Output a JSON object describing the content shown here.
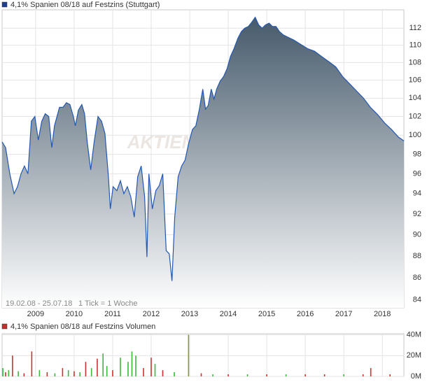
{
  "chart_data": [
    {
      "type": "area",
      "title": "4,1% Spanien 08/18 auf Festzins (Stuttgart)",
      "legend_color": "#1f3f8f",
      "color": "#2458b0",
      "fill_top": "#465a6b",
      "fill_bottom": "#ffffff",
      "watermark": "AKTIEN",
      "range_label": "19.02.08 - 25.07.18",
      "tick_label": "1 Tick = 1 Woche",
      "log_scale": true,
      "grid": true,
      "xlim": [
        2008.13,
        2018.56
      ],
      "xticks": [
        2009,
        2010,
        2011,
        2012,
        2013,
        2014,
        2015,
        2016,
        2017,
        2018
      ],
      "ylim": [
        83.3,
        114.2
      ],
      "yticks": [
        84,
        86,
        88,
        90,
        92,
        94,
        96,
        98,
        100,
        102,
        104,
        106,
        108,
        110,
        112
      ],
      "x": [
        2008.13,
        2008.22,
        2008.33,
        2008.44,
        2008.53,
        2008.62,
        2008.71,
        2008.8,
        2008.89,
        2008.98,
        2009.07,
        2009.16,
        2009.25,
        2009.34,
        2009.42,
        2009.49,
        2009.62,
        2009.71,
        2009.8,
        2009.89,
        2009.98,
        2010.03,
        2010.11,
        2010.2,
        2010.27,
        2010.34,
        2010.43,
        2010.52,
        2010.62,
        2010.71,
        2010.8,
        2010.89,
        2010.94,
        2011.01,
        2011.11,
        2011.2,
        2011.29,
        2011.38,
        2011.47,
        2011.56,
        2011.65,
        2011.74,
        2011.83,
        2011.89,
        2011.94,
        2012.03,
        2012.12,
        2012.21,
        2012.3,
        2012.39,
        2012.47,
        2012.54,
        2012.61,
        2012.7,
        2012.79,
        2012.88,
        2012.97,
        2013.07,
        2013.16,
        2013.25,
        2013.34,
        2013.41,
        2013.48,
        2013.56,
        2013.63,
        2013.7,
        2013.79,
        2013.88,
        2013.97,
        2014.06,
        2014.15,
        2014.25,
        2014.34,
        2014.43,
        2014.52,
        2014.61,
        2014.7,
        2014.79,
        2014.88,
        2014.97,
        2015.06,
        2015.15,
        2015.24,
        2015.33,
        2015.43,
        2015.52,
        2015.7,
        2015.88,
        2016.06,
        2016.24,
        2016.42,
        2016.61,
        2016.79,
        2016.97,
        2017.15,
        2017.33,
        2017.51,
        2017.69,
        2017.88,
        2018.06,
        2018.24,
        2018.42,
        2018.56
      ],
      "values": [
        99.3,
        98.7,
        96,
        94,
        94.7,
        96,
        96.8,
        96,
        101.5,
        102,
        99.5,
        101.5,
        102.3,
        102,
        98.7,
        101,
        103,
        103,
        103.5,
        103.3,
        102,
        101,
        102.7,
        103.3,
        102.3,
        99.3,
        96.4,
        99.3,
        102,
        101.5,
        100.2,
        95.7,
        92.5,
        94.7,
        94.3,
        95.3,
        94,
        94.7,
        93.7,
        91.7,
        95.7,
        96.8,
        93.7,
        87.9,
        96,
        92.5,
        94.3,
        94.8,
        96,
        88.5,
        88.2,
        85.7,
        91.7,
        95.7,
        96.8,
        97.4,
        99.1,
        100.6,
        101,
        102.8,
        105,
        102.8,
        103.2,
        105,
        103.9,
        105,
        105.9,
        106.4,
        107.3,
        108.7,
        109.6,
        110.8,
        111.6,
        112,
        112.2,
        112.7,
        113.3,
        112.4,
        112,
        112.4,
        112.6,
        112.2,
        112.2,
        111.6,
        111.2,
        111,
        110.6,
        110.1,
        109.6,
        109.3,
        108.7,
        108.1,
        107.5,
        106.4,
        105.6,
        104.8,
        104,
        103,
        102.2,
        101.3,
        100.6,
        99.8,
        99.4
      ]
    },
    {
      "type": "bar",
      "title": "4,1% Spanien 08/18 auf Festzins Volumen",
      "legend_color": "#c03030",
      "grid": true,
      "xlim": [
        2008.13,
        2018.56
      ],
      "xticks": [
        2009,
        2010,
        2011,
        2012,
        2013,
        2014,
        2015,
        2016,
        2017,
        2018
      ],
      "ylim": [
        0,
        41000000
      ],
      "yticks": [
        {
          "value": 0,
          "label": "0M"
        },
        {
          "value": 20000000,
          "label": "20M"
        },
        {
          "value": 40000000,
          "label": "40M"
        }
      ],
      "x": [
        2008.15,
        2008.22,
        2008.3,
        2008.4,
        2008.55,
        2008.7,
        2008.9,
        2009.1,
        2009.3,
        2009.5,
        2009.7,
        2009.85,
        2010.0,
        2010.15,
        2010.3,
        2010.45,
        2010.6,
        2010.75,
        2010.85,
        2011.0,
        2011.2,
        2011.4,
        2011.5,
        2011.6,
        2011.8,
        2012.0,
        2012.1,
        2012.3,
        2012.6,
        2012.97,
        2013.3,
        2013.6,
        2014.0,
        2014.5,
        2015.0,
        2015.5,
        2016.0,
        2016.5,
        2017.0,
        2017.5,
        2017.7,
        2018.2
      ],
      "values": [
        8000000,
        4000000,
        6000000,
        20000000,
        5000000,
        3000000,
        24000000,
        6000000,
        4000000,
        3000000,
        8000000,
        6000000,
        5000000,
        4000000,
        14000000,
        8000000,
        17000000,
        22000000,
        10000000,
        6000000,
        18000000,
        14000000,
        24000000,
        20000000,
        8000000,
        18000000,
        12000000,
        6000000,
        4000000,
        40000000,
        3000000,
        2000000,
        2000000,
        2000000,
        2000000,
        2000000,
        2000000,
        2000000,
        2000000,
        2000000,
        8000000,
        2000000
      ],
      "bar_colors": [
        "#3cb83c",
        "#d03030",
        "#3cb83c",
        "#d03030",
        "#3cb83c",
        "#d03030",
        "#d03030",
        "#3cb83c",
        "#d03030",
        "#3cb83c",
        "#d03030",
        "#3cb83c",
        "#d03030",
        "#3cb83c",
        "#d03030",
        "#3cb83c",
        "#d03030",
        "#3cb83c",
        "#3cb83c",
        "#d03030",
        "#3cb83c",
        "#3cb83c",
        "#3cb83c",
        "#3cb83c",
        "#d03030",
        "#d03030",
        "#3cb83c",
        "#d03030",
        "#3cb83c",
        "#8a9a30",
        "#d03030",
        "#3cb83c",
        "#d03030",
        "#3cb83c",
        "#d03030",
        "#3cb83c",
        "#d03030",
        "#d03030",
        "#3cb83c",
        "#d03030",
        "#d03030",
        "#d03030"
      ]
    }
  ]
}
